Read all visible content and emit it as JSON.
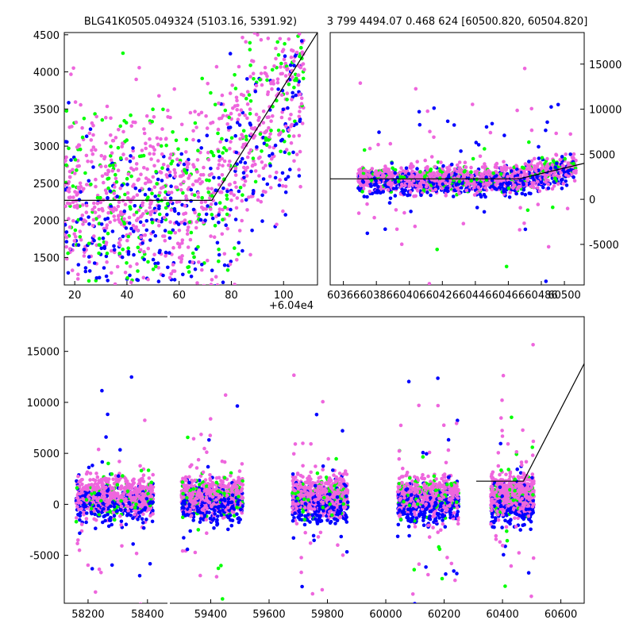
{
  "colors": {
    "green": "#00ff00",
    "blue": "#0000ff",
    "pink": "#ee66dd",
    "line": "#000000"
  },
  "chart_data": [
    {
      "type": "scatter",
      "panel": "zoom-left",
      "title": "BLG41K0505.049324 (5103.16, 5391.92)",
      "x_offset_label": "+6.04e4",
      "xlim": [
        16,
        113
      ],
      "ylim": [
        1130,
        4530
      ],
      "x_ticks": [
        "20",
        "40",
        "60",
        "80",
        "100"
      ],
      "x_tick_values": [
        20,
        40,
        60,
        80,
        100
      ],
      "y_ticks": [
        "1500",
        "2000",
        "2500",
        "3000",
        "3500",
        "4000",
        "4500"
      ],
      "y_tick_values": [
        1500,
        2000,
        2500,
        3000,
        3500,
        4000,
        4500
      ],
      "model_line": [
        [
          16,
          2270
        ],
        [
          72.5,
          2270
        ],
        [
          113,
          4530
        ]
      ]
    },
    {
      "type": "scatter",
      "panel": "zoom-right",
      "title": "3 799 4494.07 0.468 624 [60500.820, 60504.820]",
      "xlim": [
        60358,
        60512
      ],
      "ylim": [
        -9500,
        18500
      ],
      "x_ticks": [
        "60366",
        "60386",
        "60406",
        "60426",
        "60446",
        "60466",
        "60486",
        "60500"
      ],
      "x_tick_values": [
        60366,
        60386,
        60406,
        60426,
        60446,
        60466,
        60486,
        60500
      ],
      "y_ticks": [
        "-5000",
        "0",
        "5000",
        "10000",
        "15000"
      ],
      "y_tick_values": [
        -5000,
        0,
        5000,
        10000,
        15000
      ],
      "model_line": [
        [
          60358,
          2270
        ],
        [
          60472.5,
          2270
        ],
        [
          60512,
          4000
        ]
      ]
    },
    {
      "type": "scatter",
      "panel": "full",
      "x_ticks_left": [
        "58200",
        "58400"
      ],
      "x_tick_values_left": [
        58200,
        58400
      ],
      "x_ticks_right": [
        "59400",
        "59600",
        "59800",
        "60000",
        "60200",
        "60400",
        "60600"
      ],
      "x_tick_values_right": [
        59400,
        59600,
        59800,
        60000,
        60200,
        60400,
        60600
      ],
      "y_ticks": [
        "-5000",
        "0",
        "5000",
        "10000",
        "15000"
      ],
      "y_tick_values": [
        -5000,
        0,
        5000,
        10000,
        15000
      ],
      "ylim": [
        -9700,
        18400
      ],
      "segments": [
        {
          "xlim": [
            58120,
            58470
          ]
        },
        {
          "xlim": [
            59260,
            60680
          ]
        }
      ],
      "seasons": [
        {
          "x0": 58160,
          "x1": 58420
        },
        {
          "x0": 59300,
          "x1": 59510
        },
        {
          "x0": 59680,
          "x1": 59870
        },
        {
          "x0": 60040,
          "x1": 60250
        },
        {
          "x0": 60360,
          "x1": 60508
        }
      ],
      "model_line": [
        [
          60310,
          2270
        ],
        [
          60472,
          2270
        ],
        [
          60680,
          13800
        ]
      ]
    }
  ]
}
